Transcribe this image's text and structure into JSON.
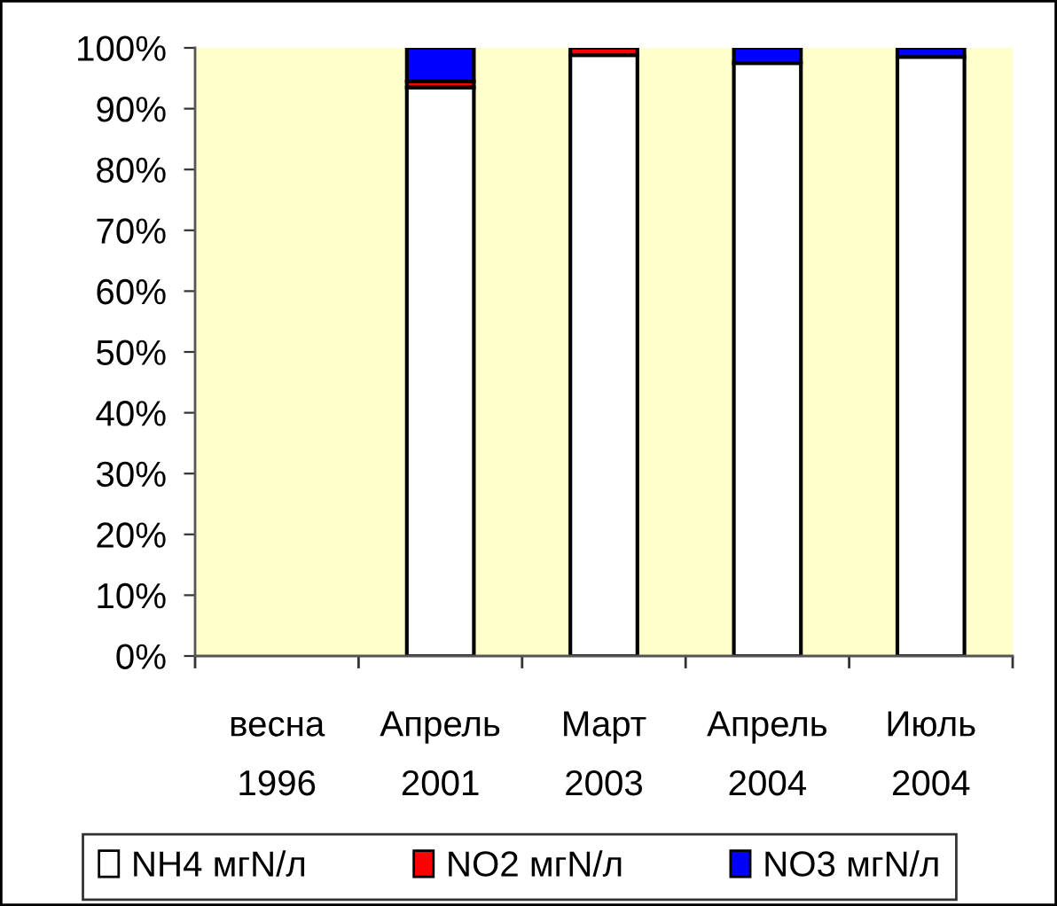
{
  "chart_data": {
    "type": "bar",
    "stacked": true,
    "categories": [
      "весна\n1996",
      "Апрель\n2001",
      "Март\n2003",
      "Апрель\n2004",
      "Июль\n2004"
    ],
    "series": [
      {
        "name": "NH4 мгN/л",
        "color": "#ffffff",
        "values": [
          null,
          93.5,
          98.8,
          97.5,
          98.5
        ]
      },
      {
        "name": "NO2 мгN/л",
        "color": "#ff0000",
        "values": [
          null,
          1.0,
          1.2,
          null,
          null
        ]
      },
      {
        "name": "NO3 мгN/л",
        "color": "#0000ff",
        "values": [
          null,
          5.5,
          null,
          2.5,
          1.5
        ]
      }
    ],
    "ylim": [
      0,
      100
    ],
    "yticks": [
      {
        "value": 0,
        "label": "0%"
      },
      {
        "value": 10,
        "label": "10%"
      },
      {
        "value": 20,
        "label": "20%"
      },
      {
        "value": 30,
        "label": "30%"
      },
      {
        "value": 40,
        "label": "40%"
      },
      {
        "value": 50,
        "label": "50%"
      },
      {
        "value": 60,
        "label": "60%"
      },
      {
        "value": 70,
        "label": "70%"
      },
      {
        "value": 80,
        "label": "80%"
      },
      {
        "value": 90,
        "label": "90%"
      },
      {
        "value": 100,
        "label": "100%"
      }
    ],
    "grid": false,
    "legend": "bottom"
  }
}
